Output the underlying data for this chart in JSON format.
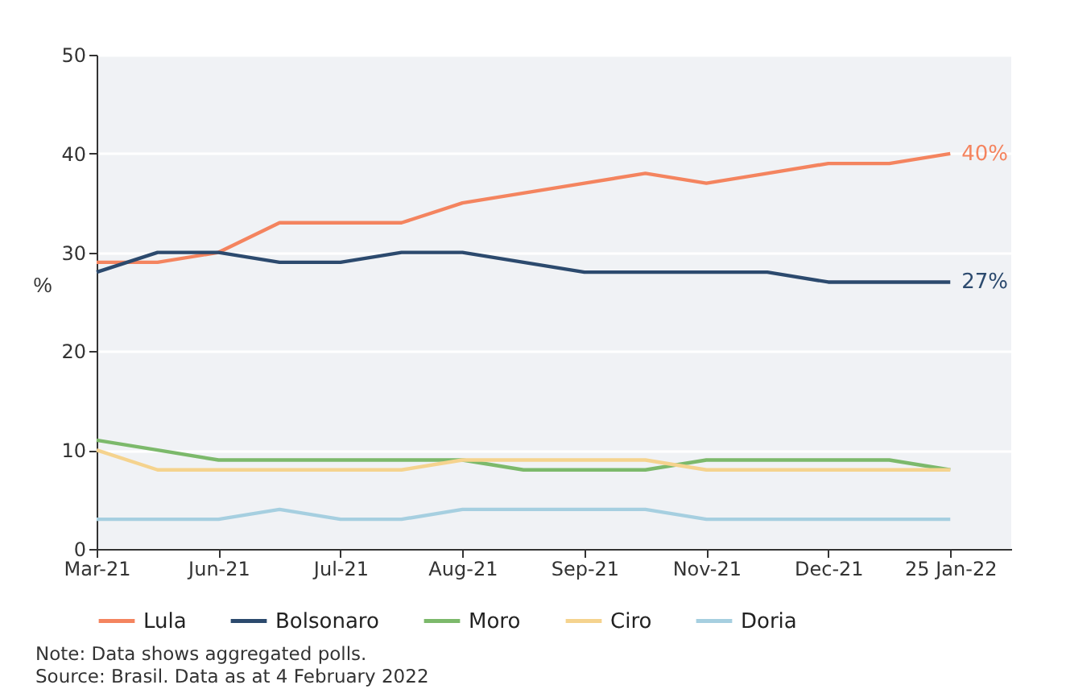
{
  "chart_data": {
    "type": "line",
    "categories": [
      "Mar-21",
      null,
      "Jun-21",
      null,
      "Jul-21",
      null,
      "Aug-21",
      null,
      "Sep-21",
      null,
      "Nov-21",
      null,
      "Dec-21",
      null,
      "25 Jan-22"
    ],
    "ylabel": "%",
    "ylim": [
      0,
      50
    ],
    "yticks": [
      0,
      10,
      20,
      30,
      40,
      50
    ],
    "grid": "y",
    "legend": "bottom left",
    "series": [
      {
        "name": "Lula",
        "color": "#f4845f",
        "values": [
          29,
          29,
          30,
          33,
          33,
          33,
          35,
          36,
          37,
          38,
          37,
          38,
          39,
          39,
          40
        ]
      },
      {
        "name": "Bolsonaro",
        "color": "#2c4a6e",
        "values": [
          28,
          30,
          30,
          29,
          29,
          30,
          30,
          29,
          28,
          28,
          28,
          28,
          27,
          27,
          27
        ]
      },
      {
        "name": "Moro",
        "color": "#7cb96b",
        "values": [
          11,
          10,
          9,
          9,
          9,
          9,
          9,
          8,
          8,
          8,
          9,
          9,
          9,
          9,
          8
        ]
      },
      {
        "name": "Ciro",
        "color": "#f5d38e",
        "values": [
          10,
          8,
          8,
          8,
          8,
          8,
          9,
          9,
          9,
          9,
          8,
          8,
          8,
          8,
          8
        ]
      },
      {
        "name": "Doria",
        "color": "#a6cfe0",
        "values": [
          3,
          3,
          3,
          4,
          3,
          3,
          4,
          4,
          4,
          4,
          3,
          3,
          3,
          3,
          3
        ]
      }
    ],
    "annotations": [
      {
        "text": "40%",
        "x": "25 Jan-22",
        "y": 40
      },
      {
        "text": "27%",
        "x": "25 Jan-22",
        "y": 27
      },
      "Note: Data shows aggregated polls.",
      "Source: Brasil. Data as at 4 February 2022"
    ]
  }
}
